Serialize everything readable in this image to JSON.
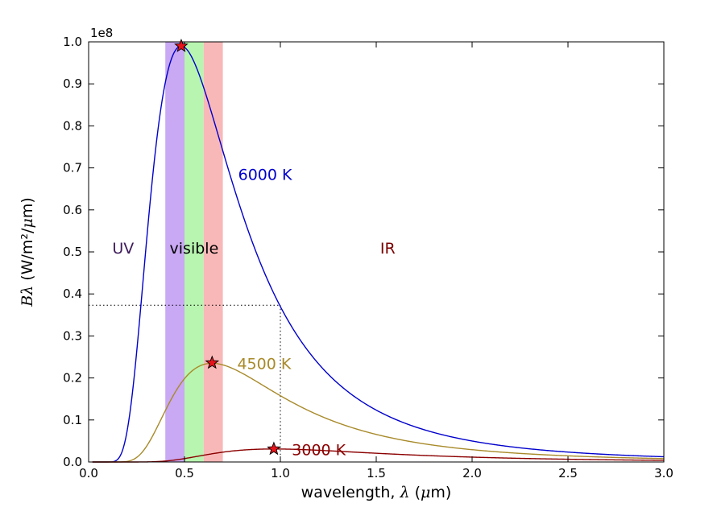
{
  "chart_data": {
    "type": "line",
    "xlabel": "wavelength, λ (μm)",
    "ylabel": "Bλ (W/m²/μm)",
    "y_scale_label": "1e8",
    "xlim": [
      0.0,
      3.0
    ],
    "ylim": [
      0.0,
      1.0
    ],
    "y_units_multiplier": 100000000,
    "x_ticks": [
      "0.0",
      "0.5",
      "1.0",
      "1.5",
      "2.0",
      "2.5",
      "3.0"
    ],
    "y_ticks": [
      "0.0",
      "0.1",
      "0.2",
      "0.3",
      "0.4",
      "0.5",
      "0.6",
      "0.7",
      "0.8",
      "0.9",
      "1.0"
    ],
    "bands": [
      {
        "from": 0.4,
        "to": 0.5,
        "color": "#c9a8f4"
      },
      {
        "from": 0.5,
        "to": 0.6,
        "color": "#b8f5b0"
      },
      {
        "from": 0.6,
        "to": 0.7,
        "color": "#f9b8b8"
      }
    ],
    "regions": [
      {
        "label": "UV",
        "x": 0.18,
        "y": 0.51,
        "color": "#3d1a5a"
      },
      {
        "label": "visible",
        "x": 0.55,
        "y": 0.51,
        "color": "#000000"
      },
      {
        "label": "IR",
        "x": 1.56,
        "y": 0.51,
        "color": "#7a0000"
      }
    ],
    "series": [
      {
        "name": "6000 K",
        "temperature": 6000,
        "color": "#0000cc",
        "label_x": 0.78,
        "label_y": 0.685,
        "peak": {
          "x": 0.483,
          "y": 0.99
        }
      },
      {
        "name": "4500 K",
        "temperature": 4500,
        "color": "#a88a2a",
        "label_x": 0.775,
        "label_y": 0.235,
        "peak": {
          "x": 0.644,
          "y": 0.236
        }
      },
      {
        "name": "3000 K",
        "temperature": 3000,
        "color": "#8b0000",
        "label_x": 1.06,
        "label_y": 0.03,
        "peak": {
          "x": 0.966,
          "y": 0.031
        }
      }
    ],
    "guide": {
      "x": 1.0,
      "y": 0.373
    },
    "grid": false
  }
}
